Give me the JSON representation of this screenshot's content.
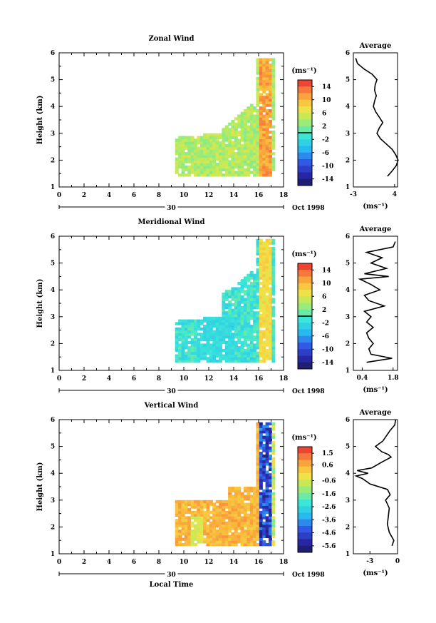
{
  "chart_data": [
    {
      "type": "heatmap",
      "title": "Zonal Wind",
      "ylabel": "Height (km)",
      "xlabel": "",
      "xlim": [
        0,
        18
      ],
      "ylim": [
        1,
        6
      ],
      "x_ticks": [
        "0",
        "2",
        "4",
        "6",
        "8",
        "10",
        "12",
        "14",
        "16",
        "18"
      ],
      "y_ticks": [
        "1",
        "2",
        "3",
        "4",
        "5",
        "6"
      ],
      "date_marker": "30",
      "date_label": "Oct 1998",
      "colorbar": {
        "unit": "(ms⁻¹)",
        "ticks": [
          "14",
          "10",
          "6",
          "2",
          "-2",
          "-6",
          "-10",
          "-14"
        ],
        "min": -16,
        "max": 16,
        "zero_line": 0
      },
      "data_region": {
        "x_range": [
          9.3,
          17.1
        ],
        "y_range": [
          1.4,
          5.7
        ],
        "dominant_value": 4
      },
      "average": {
        "title": "Average",
        "xlabel": "(ms⁻¹)",
        "xticks": [
          "-3",
          "4"
        ],
        "xlim": [
          -3,
          4.5
        ],
        "height": [
          1.4,
          1.6,
          1.8,
          2.0,
          2.2,
          2.4,
          2.6,
          2.8,
          3.0,
          3.2,
          3.4,
          3.6,
          3.8,
          4.0,
          4.2,
          4.4,
          4.6,
          4.8,
          5.0,
          5.2,
          5.4,
          5.6,
          5.8
        ],
        "values": [
          2.8,
          3.6,
          4.3,
          4.6,
          4.2,
          3.6,
          2.6,
          1.6,
          1.0,
          1.4,
          2.0,
          1.4,
          0.8,
          0.4,
          0.6,
          0.9,
          0.6,
          0.7,
          1.0,
          0.2,
          -1.2,
          -2.3,
          -2.6
        ]
      }
    },
    {
      "type": "heatmap",
      "title": "Meridional Wind",
      "ylabel": "Height (km)",
      "xlabel": "",
      "xlim": [
        0,
        18
      ],
      "ylim": [
        1,
        6
      ],
      "x_ticks": [
        "0",
        "2",
        "4",
        "6",
        "8",
        "10",
        "12",
        "14",
        "16",
        "18"
      ],
      "y_ticks": [
        "1",
        "2",
        "3",
        "4",
        "5",
        "6"
      ],
      "date_marker": "30",
      "date_label": "Oct 1998",
      "colorbar": {
        "unit": "(ms⁻¹)",
        "ticks": [
          "14",
          "10",
          "6",
          "2",
          "-2",
          "-6",
          "-10",
          "-14"
        ],
        "min": -16,
        "max": 16,
        "zero_line": 0
      },
      "data_region": {
        "x_range": [
          9.3,
          17.1
        ],
        "y_range": [
          1.3,
          5.8
        ],
        "dominant_value": -1
      },
      "average": {
        "title": "Average",
        "xlabel": "(ms⁻¹)",
        "xticks": [
          "0.4",
          "1.8"
        ],
        "xlim": [
          0,
          2.0
        ],
        "height": [
          1.3,
          1.45,
          1.6,
          1.8,
          2.0,
          2.2,
          2.4,
          2.6,
          2.8,
          3.0,
          3.2,
          3.4,
          3.6,
          3.8,
          4.0,
          4.2,
          4.4,
          4.5,
          4.6,
          4.8,
          5.0,
          5.2,
          5.4,
          5.6,
          5.8
        ],
        "values": [
          0.6,
          1.75,
          0.8,
          0.7,
          0.9,
          0.7,
          0.6,
          0.9,
          0.6,
          0.8,
          0.5,
          1.4,
          0.7,
          0.5,
          1.2,
          0.8,
          0.3,
          1.6,
          0.5,
          1.5,
          0.8,
          1.3,
          0.6,
          1.8,
          1.9
        ]
      }
    },
    {
      "type": "heatmap",
      "title": "Vertical Wind",
      "ylabel": "Height (km)",
      "xlabel": "Local Time",
      "xlim": [
        0,
        18
      ],
      "ylim": [
        1,
        6
      ],
      "x_ticks": [
        "0",
        "2",
        "4",
        "6",
        "8",
        "10",
        "12",
        "14",
        "16",
        "18"
      ],
      "y_ticks": [
        "1",
        "2",
        "3",
        "4",
        "5",
        "6"
      ],
      "date_marker": "30",
      "date_label": "Oct 1998",
      "colorbar": {
        "unit": "(ms⁻¹)",
        "ticks": [
          "1.5",
          "0.6",
          "-0.6",
          "-1.6",
          "-2.6",
          "-3.6",
          "-4.6",
          "-5.6"
        ],
        "min": -6.1,
        "max": 2.0,
        "zero_line": null
      },
      "data_region": {
        "x_range": [
          9.3,
          17.1
        ],
        "y_range": [
          1.3,
          5.8
        ],
        "dominant_value": 0.5
      },
      "average": {
        "title": "Average",
        "xlabel": "(ms⁻¹)",
        "xticks": [
          "-3",
          "0"
        ],
        "xlim": [
          -4.8,
          0
        ],
        "height": [
          1.3,
          1.5,
          1.8,
          2.1,
          2.4,
          2.7,
          3.0,
          3.2,
          3.4,
          3.6,
          3.8,
          3.9,
          4.0,
          4.1,
          4.2,
          4.4,
          4.6,
          4.7,
          4.8,
          5.0,
          5.2,
          5.4,
          5.6,
          5.8,
          6.0
        ],
        "values": [
          -0.6,
          -0.4,
          -0.9,
          -1.1,
          -1.0,
          -0.9,
          -1.3,
          -0.8,
          -1.1,
          -3.0,
          -3.8,
          -4.5,
          -3.2,
          -4.4,
          -2.8,
          -1.8,
          -0.7,
          -1.0,
          -1.7,
          -2.4,
          -1.6,
          -1.2,
          -0.8,
          -0.3,
          -0.2
        ]
      }
    }
  ]
}
